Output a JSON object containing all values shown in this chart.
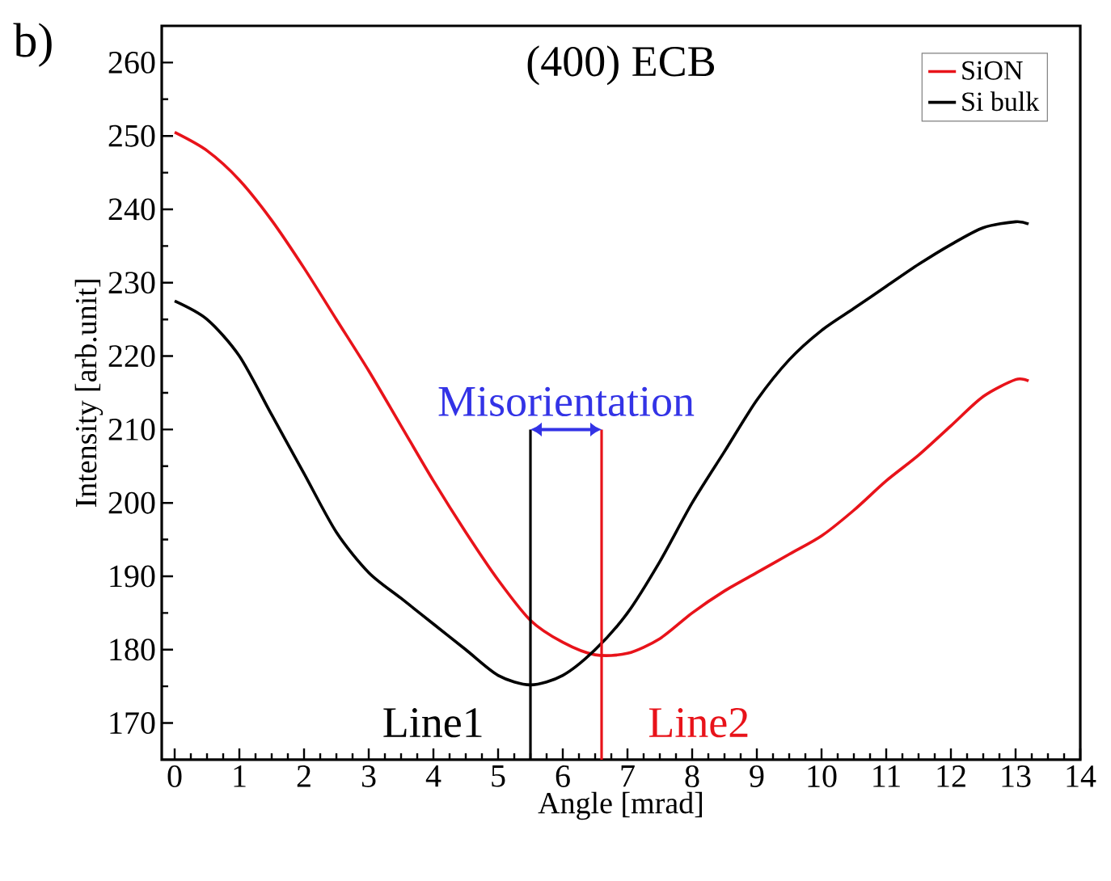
{
  "chart_data": {
    "type": "line",
    "title": "(400) ECB",
    "xlabel": "Angle [mrad]",
    "ylabel": "Intensity [arb.unit]",
    "annotations": [
      "b)",
      "Misorientation"
    ],
    "xlim": [
      -0.2,
      14
    ],
    "xticks": [
      0,
      1,
      2,
      3,
      4,
      5,
      6,
      7,
      8,
      9,
      10,
      11,
      12,
      13,
      14
    ],
    "ylim": [
      165,
      265
    ],
    "yticks": [
      170,
      180,
      190,
      200,
      210,
      220,
      230,
      240,
      250,
      260
    ],
    "grid": false,
    "legend": "top right",
    "line_style": "solid",
    "marker": "none",
    "series": [
      {
        "name": "SiON",
        "color": "#e8131a",
        "x": [
          0,
          0.5,
          1,
          1.5,
          2,
          2.5,
          3,
          3.5,
          4,
          4.5,
          5,
          5.5,
          6,
          6.5,
          7,
          7.5,
          8,
          8.5,
          9,
          9.5,
          10,
          10.5,
          11,
          11.5,
          12,
          12.5,
          13,
          13.2
        ],
        "values": [
          250.5,
          248,
          244,
          238.5,
          232,
          225,
          218,
          210.5,
          203,
          196,
          189.5,
          184,
          181,
          179.3,
          179.5,
          181.5,
          185,
          188,
          190.5,
          193,
          195.5,
          199,
          203,
          206.5,
          210.5,
          214.5,
          216.8,
          216.6
        ]
      },
      {
        "name": "Si bulk",
        "color": "#000000",
        "x": [
          0,
          0.5,
          1,
          1.5,
          2,
          2.5,
          3,
          3.5,
          4,
          4.5,
          5,
          5.5,
          6,
          6.5,
          7,
          7.5,
          8,
          8.5,
          9,
          9.5,
          10,
          10.5,
          11,
          11.5,
          12,
          12.5,
          13,
          13.2
        ],
        "values": [
          227.5,
          225,
          220,
          212,
          204,
          196,
          190.5,
          187,
          183.5,
          180,
          176.5,
          175.2,
          176.5,
          180,
          185,
          192,
          200,
          207,
          214,
          219.5,
          223.5,
          226.5,
          229.5,
          232.5,
          235.2,
          237.5,
          238.3,
          238
        ]
      }
    ],
    "ref_lines": [
      {
        "axis": "x",
        "value": 5.5,
        "label": "Line1",
        "color": "#000000"
      },
      {
        "axis": "x",
        "value": 6.6,
        "label": "Line2",
        "color": "#e8131a"
      }
    ]
  }
}
